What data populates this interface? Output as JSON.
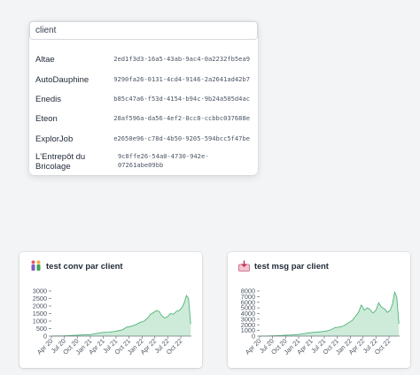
{
  "search": {
    "value": "client"
  },
  "clients": [
    {
      "name": "Altae",
      "id": "2ed1f3d3-16a5-43ab-9ac4-0a2232fb5ea9"
    },
    {
      "name": "AutoDauphine",
      "id": "9290fa26-0131-4cd4-9146-2a2641ad42b7"
    },
    {
      "name": "Enedis",
      "id": "b85c47a6-f53d-4154-b94c-9b24a505d4ac"
    },
    {
      "name": "Eteon",
      "id": "28af596a-da56-4ef2-8cc8-ccbbc037688e"
    },
    {
      "name": "ExplorJob",
      "id": "e2650e96-c78d-4b50-9205-594bcc5f47be"
    },
    {
      "name": "L'Entrepôt du Bricolage",
      "id": "9c8ffe26-54a0-4730-942e-07261abe09bb"
    }
  ],
  "cards": [
    {
      "title": "test conv par client",
      "icon": "people-icon"
    },
    {
      "title": "test msg par client",
      "icon": "inbox-download-icon"
    }
  ],
  "colors": {
    "area_fill": "#cdebd8",
    "area_stroke": "#4fb37a"
  },
  "chart_data": [
    {
      "type": "area",
      "title": "test conv par client",
      "x_ticks": [
        "Apr 20",
        "Jul 20",
        "Oct 20",
        "Jan 21",
        "Apr 21",
        "Jul 21",
        "Oct 21",
        "Jan 22",
        "Apr 22",
        "Jul 22",
        "Oct 22"
      ],
      "y_ticks": [
        0,
        500,
        1000,
        1500,
        2000,
        2500,
        3000
      ],
      "ylim": [
        0,
        3000
      ],
      "x_range": [
        "2020-04-01",
        "2022-12-15"
      ],
      "series": [
        {
          "x": [
            "2020-04-01",
            "2020-05-15",
            "2020-07-01",
            "2020-08-15",
            "2020-10-01",
            "2020-11-15",
            "2021-01-01",
            "2021-02-15",
            "2021-04-01",
            "2021-05-15",
            "2021-06-15",
            "2021-07-15",
            "2021-08-15",
            "2021-09-15",
            "2021-10-15",
            "2021-11-15",
            "2021-12-15",
            "2022-01-15",
            "2022-02-10",
            "2022-03-01",
            "2022-03-20",
            "2022-04-10",
            "2022-05-01",
            "2022-05-20",
            "2022-06-10",
            "2022-07-01",
            "2022-07-20",
            "2022-08-10",
            "2022-09-01",
            "2022-09-20",
            "2022-10-10",
            "2022-10-25",
            "2022-11-10",
            "2022-11-25",
            "2022-12-10"
          ],
          "values": [
            0,
            10,
            20,
            40,
            60,
            80,
            100,
            180,
            250,
            260,
            300,
            350,
            420,
            600,
            650,
            750,
            900,
            1000,
            1200,
            1450,
            1550,
            1700,
            1650,
            1350,
            1200,
            1300,
            1500,
            1450,
            1650,
            1700,
            1900,
            2200,
            2700,
            2500,
            800
          ]
        }
      ]
    },
    {
      "type": "area",
      "title": "test msg par client",
      "x_ticks": [
        "Apr 20",
        "Jul 20",
        "Oct 20",
        "Jan 21",
        "Apr 21",
        "Jul 21",
        "Oct 21",
        "Jan 22",
        "Apr 22",
        "Jul 22",
        "Oct 22"
      ],
      "y_ticks": [
        0,
        1000,
        2000,
        3000,
        4000,
        5000,
        6000,
        7000,
        8000
      ],
      "ylim": [
        0,
        8000
      ],
      "x_range": [
        "2020-04-01",
        "2022-12-15"
      ],
      "series": [
        {
          "x": [
            "2020-04-01",
            "2020-05-15",
            "2020-07-01",
            "2020-08-15",
            "2020-10-01",
            "2020-11-15",
            "2021-01-01",
            "2021-02-15",
            "2021-04-01",
            "2021-05-15",
            "2021-06-15",
            "2021-07-15",
            "2021-08-15",
            "2021-09-15",
            "2021-10-15",
            "2021-11-15",
            "2021-12-15",
            "2022-01-15",
            "2022-02-10",
            "2022-03-01",
            "2022-03-20",
            "2022-04-10",
            "2022-05-01",
            "2022-05-20",
            "2022-06-10",
            "2022-07-01",
            "2022-07-20",
            "2022-08-10",
            "2022-09-01",
            "2022-09-20",
            "2022-10-10",
            "2022-10-25",
            "2022-11-10",
            "2022-11-25",
            "2022-12-10"
          ],
          "values": [
            0,
            20,
            50,
            100,
            150,
            200,
            300,
            450,
            650,
            700,
            800,
            900,
            1100,
            1500,
            1600,
            1800,
            2300,
            2800,
            3600,
            4300,
            5500,
            4600,
            5000,
            4700,
            4100,
            4600,
            5900,
            5100,
            4800,
            4200,
            4600,
            5600,
            7800,
            6900,
            2200
          ]
        }
      ]
    }
  ]
}
